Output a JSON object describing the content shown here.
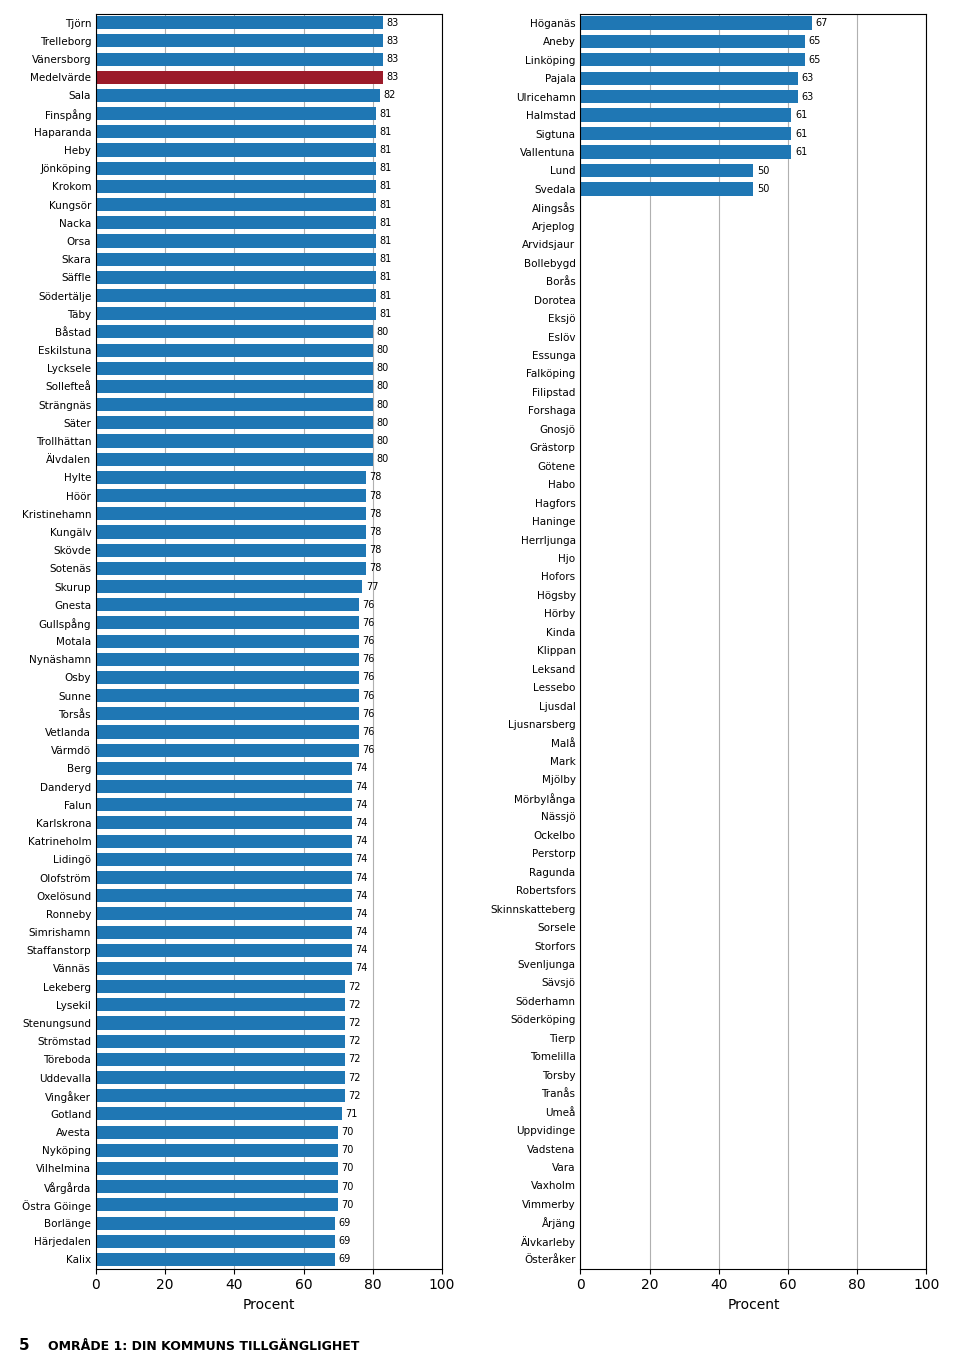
{
  "chart_data": [
    {
      "type": "bar",
      "orientation": "horizontal",
      "categories": [
        "Tjörn",
        "Trelleborg",
        "Vänersborg",
        "Medelvärde",
        "Sala",
        "Finspång",
        "Haparanda",
        "Heby",
        "Jönköping",
        "Krokom",
        "Kungsör",
        "Nacka",
        "Orsa",
        "Skara",
        "Säffle",
        "Södertälje",
        "Täby",
        "Båstad",
        "Eskilstuna",
        "Lycksele",
        "Sollefteå",
        "Strängnäs",
        "Säter",
        "Trollhättan",
        "Älvdalen",
        "Hylte",
        "Höör",
        "Kristinehamn",
        "Kungälv",
        "Skövde",
        "Sotenäs",
        "Skurup",
        "Gnesta",
        "Gullspång",
        "Motala",
        "Nynäshamn",
        "Osby",
        "Sunne",
        "Torsås",
        "Vetlanda",
        "Värmdö",
        "Berg",
        "Danderyd",
        "Falun",
        "Karlskrona",
        "Katrineholm",
        "Lidingö",
        "Olofström",
        "Oxelösund",
        "Ronneby",
        "Simrishamn",
        "Staffanstorp",
        "Vännäs",
        "Lekeberg",
        "Lysekil",
        "Stenungsund",
        "Strömstad",
        "Töreboda",
        "Uddevalla",
        "Vingåker",
        "Gotland",
        "Avesta",
        "Nyköping",
        "Vilhelmina",
        "Vårgårda",
        "Östra Göinge",
        "Borlänge",
        "Härjedalen",
        "Kalix"
      ],
      "values": [
        83,
        83,
        83,
        83,
        82,
        81,
        81,
        81,
        81,
        81,
        81,
        81,
        81,
        81,
        81,
        81,
        81,
        80,
        80,
        80,
        80,
        80,
        80,
        80,
        80,
        78,
        78,
        78,
        78,
        78,
        78,
        77,
        76,
        76,
        76,
        76,
        76,
        76,
        76,
        76,
        76,
        74,
        74,
        74,
        74,
        74,
        74,
        74,
        74,
        74,
        74,
        74,
        74,
        72,
        72,
        72,
        72,
        72,
        72,
        72,
        71,
        70,
        70,
        70,
        70,
        70,
        69,
        69,
        69
      ],
      "colors": [
        "#1f77b4",
        "#1f77b4",
        "#1f77b4",
        "#9b1b2a",
        "#1f77b4",
        "#1f77b4",
        "#1f77b4",
        "#1f77b4",
        "#1f77b4",
        "#1f77b4",
        "#1f77b4",
        "#1f77b4",
        "#1f77b4",
        "#1f77b4",
        "#1f77b4",
        "#1f77b4",
        "#1f77b4",
        "#1f77b4",
        "#1f77b4",
        "#1f77b4",
        "#1f77b4",
        "#1f77b4",
        "#1f77b4",
        "#1f77b4",
        "#1f77b4",
        "#1f77b4",
        "#1f77b4",
        "#1f77b4",
        "#1f77b4",
        "#1f77b4",
        "#1f77b4",
        "#1f77b4",
        "#1f77b4",
        "#1f77b4",
        "#1f77b4",
        "#1f77b4",
        "#1f77b4",
        "#1f77b4",
        "#1f77b4",
        "#1f77b4",
        "#1f77b4",
        "#1f77b4",
        "#1f77b4",
        "#1f77b4",
        "#1f77b4",
        "#1f77b4",
        "#1f77b4",
        "#1f77b4",
        "#1f77b4",
        "#1f77b4",
        "#1f77b4",
        "#1f77b4",
        "#1f77b4",
        "#1f77b4",
        "#1f77b4",
        "#1f77b4",
        "#1f77b4",
        "#1f77b4",
        "#1f77b4",
        "#1f77b4",
        "#1f77b4",
        "#1f77b4",
        "#1f77b4",
        "#1f77b4",
        "#1f77b4",
        "#1f77b4",
        "#1f77b4",
        "#1f77b4",
        "#1f77b4"
      ],
      "xlabel": "Procent",
      "xlim": [
        0,
        100
      ],
      "xticks": [
        0,
        20,
        40,
        60,
        80,
        100
      ],
      "grid": true,
      "data_labels": true,
      "annotations": [
        "5",
        "OMRÅDE 1: DIN KOMMUNS TILLGÄNGLIGHET"
      ]
    },
    {
      "type": "bar",
      "orientation": "horizontal",
      "categories": [
        "Höganäs",
        "Aneby",
        "Linköping",
        "Pajala",
        "Ulricehamn",
        "Halmstad",
        "Sigtuna",
        "Vallentuna",
        "Lund",
        "Svedala",
        "Alingsås",
        "Arjeplog",
        "Arvidsjaur",
        "Bollebygd",
        "Borås",
        "Dorotea",
        "Eksjö",
        "Eslöv",
        "Essunga",
        "Falköping",
        "Filipstad",
        "Forshaga",
        "Gnosjö",
        "Grästorp",
        "Götene",
        "Habo",
        "Hagfors",
        "Haninge",
        "Herrljunga",
        "Hjo",
        "Hofors",
        "Högsby",
        "Hörby",
        "Kinda",
        "Klippan",
        "Leksand",
        "Lessebo",
        "Ljusdal",
        "Ljusnarsberg",
        "Malå",
        "Mark",
        "Mjölby",
        "Mörbylånga",
        "Nässjö",
        "Ockelbo",
        "Perstorp",
        "Ragunda",
        "Robertsfors",
        "Skinnskatteberg",
        "Sorsele",
        "Storfors",
        "Svenljunga",
        "Sävsjö",
        "Söderhamn",
        "Söderköping",
        "Tierp",
        "Tomelilla",
        "Torsby",
        "Tranås",
        "Umeå",
        "Uppvidinge",
        "Vadstena",
        "Vara",
        "Vaxholm",
        "Vimmerby",
        "Årjäng",
        "Älvkarleby",
        "Österåker"
      ],
      "values": [
        67,
        65,
        65,
        63,
        63,
        61,
        61,
        61,
        50,
        50,
        0,
        0,
        0,
        0,
        0,
        0,
        0,
        0,
        0,
        0,
        0,
        0,
        0,
        0,
        0,
        0,
        0,
        0,
        0,
        0,
        0,
        0,
        0,
        0,
        0,
        0,
        0,
        0,
        0,
        0,
        0,
        0,
        0,
        0,
        0,
        0,
        0,
        0,
        0,
        0,
        0,
        0,
        0,
        0,
        0,
        0,
        0,
        0,
        0,
        0,
        0,
        0,
        0,
        0,
        0,
        0,
        0,
        0
      ],
      "value_labels": [
        "67",
        "65",
        "65",
        "63",
        "63",
        "61",
        "61",
        "61",
        "50",
        "50",
        null,
        null,
        null,
        null,
        null,
        null,
        null,
        null,
        null,
        null,
        null,
        null,
        null,
        null,
        null,
        null,
        null,
        null,
        null,
        null,
        null,
        null,
        null,
        null,
        null,
        null,
        null,
        null,
        null,
        null,
        null,
        null,
        null,
        null,
        null,
        null,
        null,
        null,
        null,
        null,
        null,
        null,
        null,
        null,
        null,
        null,
        null,
        null,
        null,
        null,
        null,
        null,
        null,
        null,
        null,
        null,
        null,
        null
      ],
      "color": "#1f77b4",
      "xlabel": "Procent",
      "xlim": [
        0,
        100
      ],
      "xticks": [
        0,
        20,
        40,
        60,
        80,
        100
      ],
      "grid": true,
      "data_labels": true
    }
  ]
}
